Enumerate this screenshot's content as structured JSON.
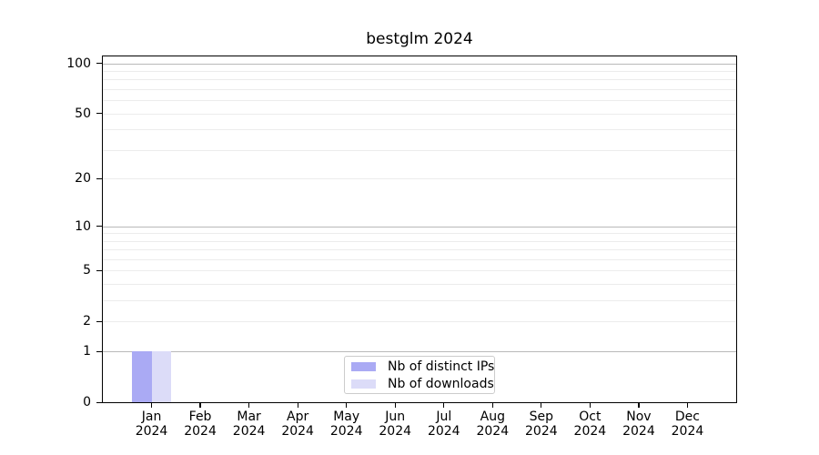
{
  "chart_data": {
    "type": "bar",
    "title": "bestglm 2024",
    "x_axis": {
      "months": [
        "Jan",
        "Feb",
        "Mar",
        "Apr",
        "May",
        "Jun",
        "Jul",
        "Aug",
        "Sep",
        "Oct",
        "Nov",
        "Dec"
      ],
      "year": "2024"
    },
    "y_axis": {
      "scale": "log1p",
      "ticks": [
        0,
        1,
        2,
        5,
        10,
        20,
        50,
        100
      ],
      "major_gridlines": [
        1,
        10,
        100
      ],
      "minor_gridlines": [
        2,
        3,
        4,
        5,
        6,
        7,
        8,
        9,
        20,
        30,
        40,
        50,
        60,
        70,
        80,
        90
      ],
      "ylim": [
        0,
        110
      ]
    },
    "series": [
      {
        "name": "Nb of distinct IPs",
        "color": "#aaaaf4",
        "values": [
          1,
          0,
          0,
          0,
          0,
          0,
          0,
          0,
          0,
          0,
          0,
          0
        ]
      },
      {
        "name": "Nb of downloads",
        "color": "#dcdcf8",
        "values": [
          1,
          0,
          0,
          0,
          0,
          0,
          0,
          0,
          0,
          0,
          0,
          0
        ]
      }
    ],
    "legend": {
      "position": "lower center",
      "entries": [
        "Nb of distinct IPs",
        "Nb of downloads"
      ]
    },
    "colors": {
      "major_grid": "#b9b9b9",
      "minor_grid": "#ececec",
      "axis": "#000000",
      "legend_border": "#cccccc",
      "text": "#000000"
    }
  }
}
